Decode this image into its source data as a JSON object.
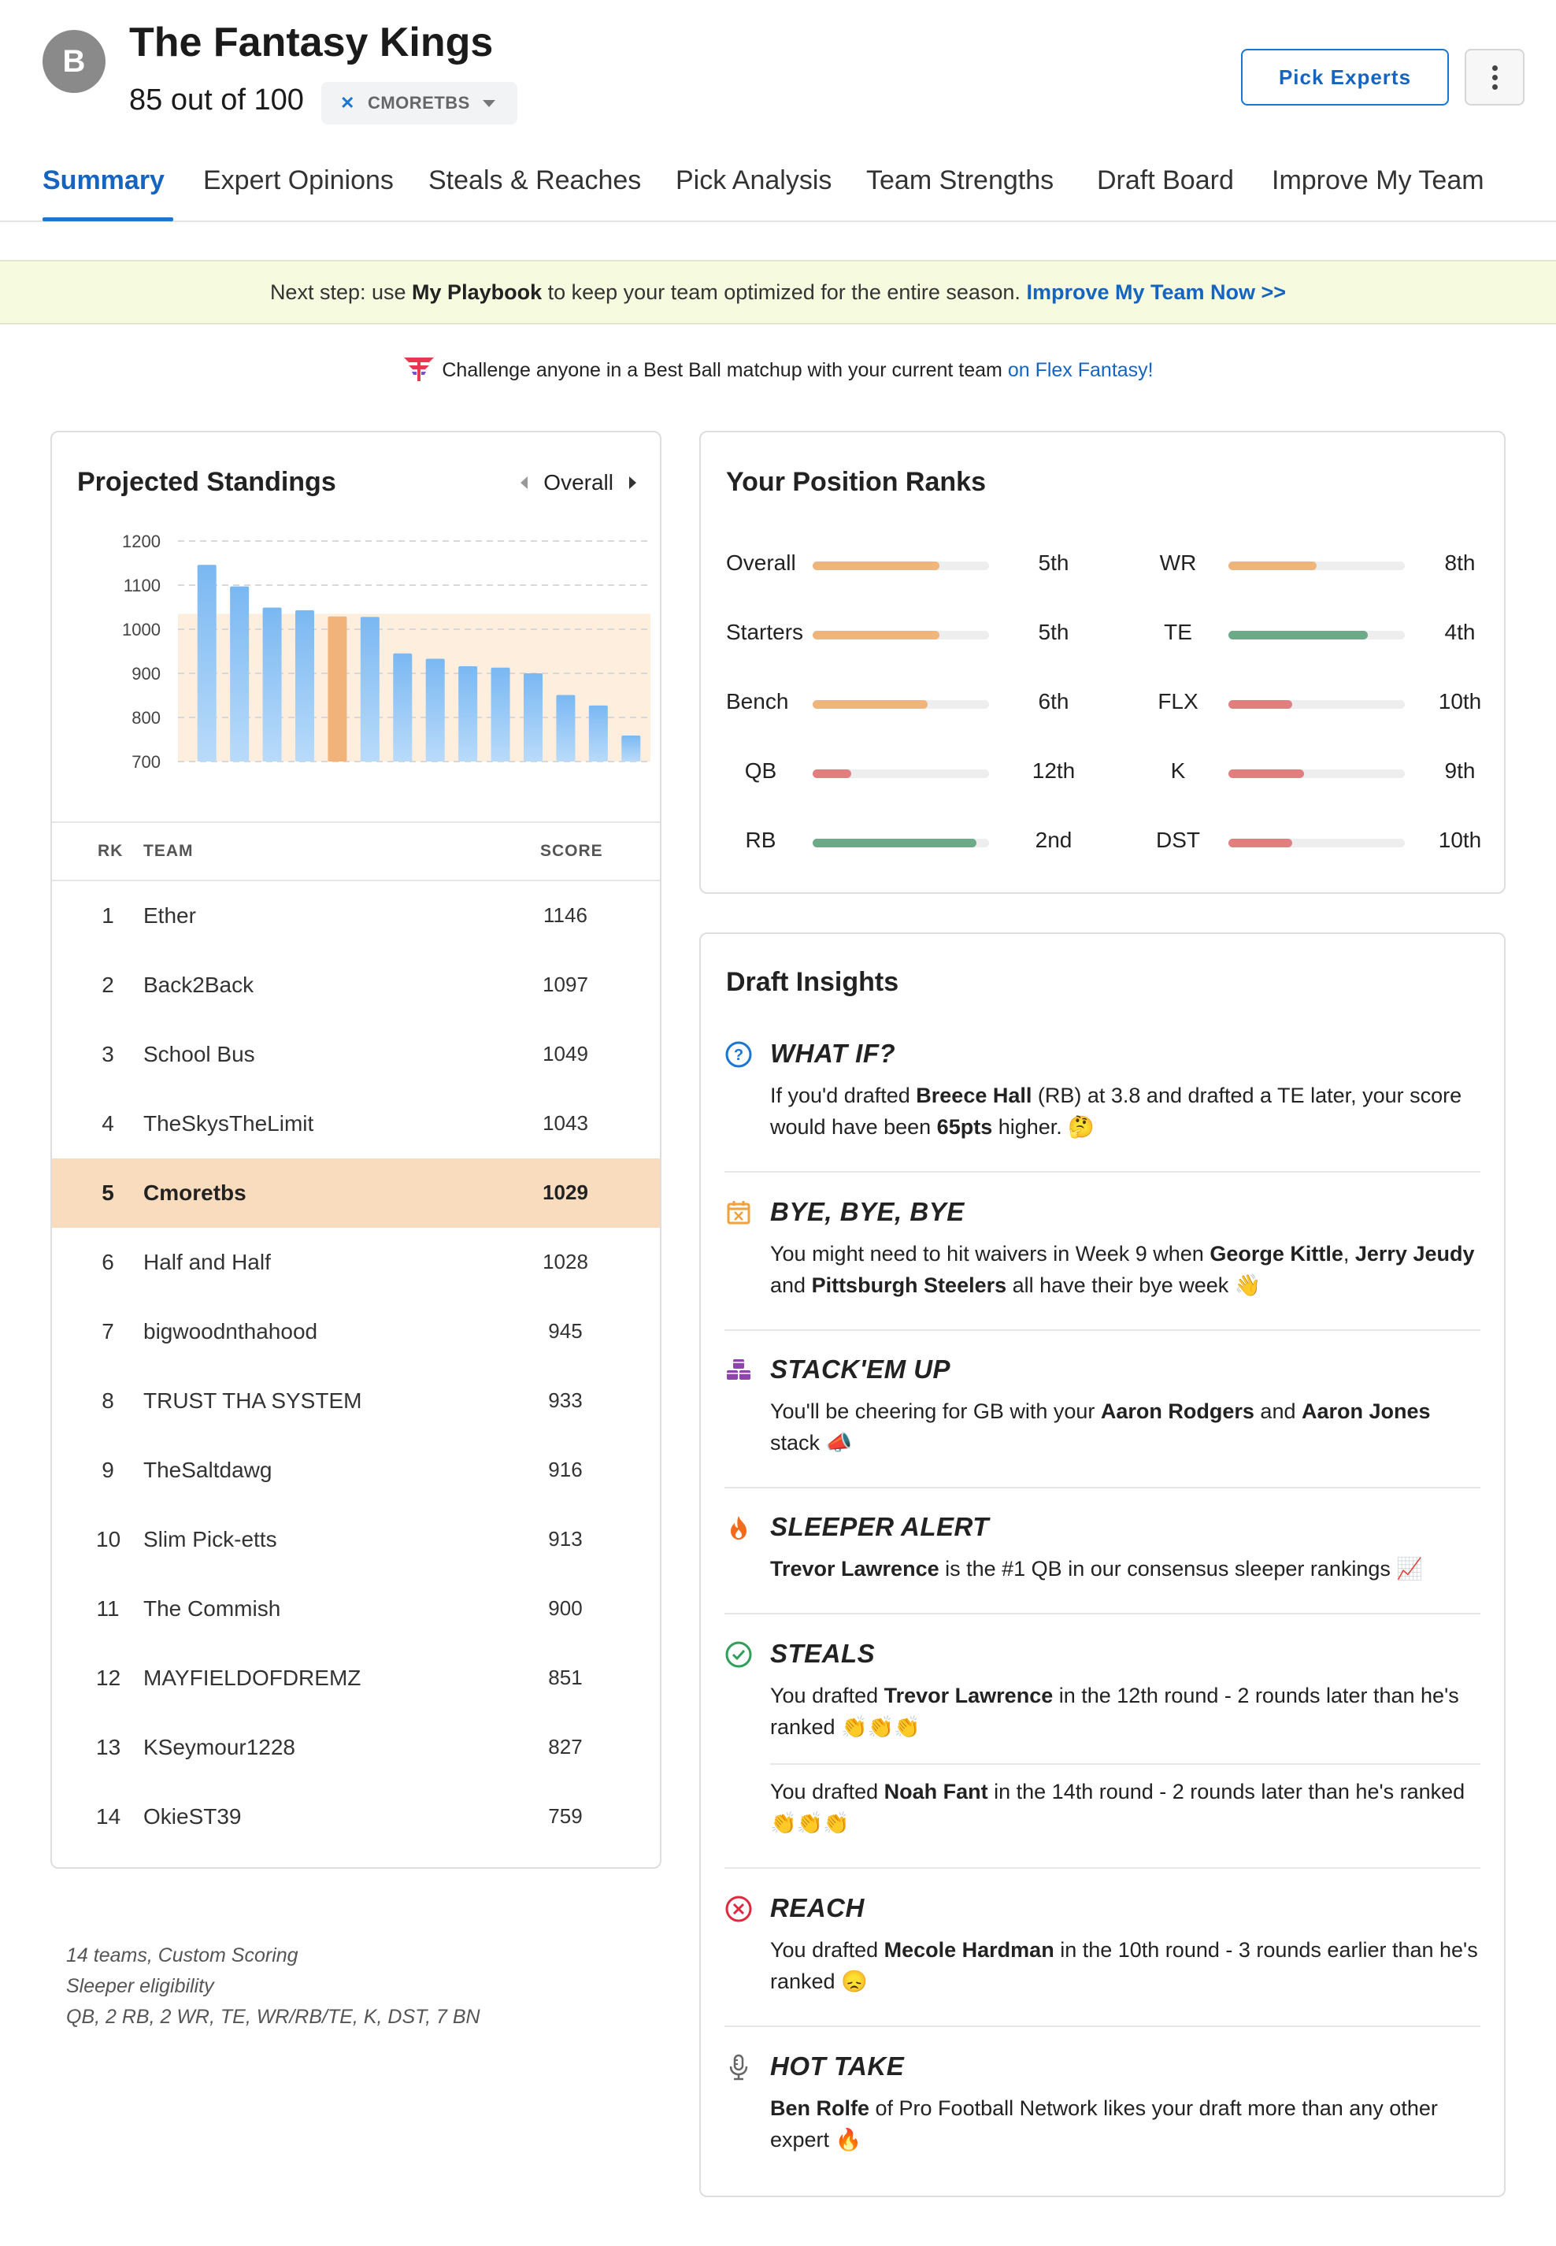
{
  "header": {
    "grade": "B",
    "team_name": "The Fantasy Kings",
    "score": "85",
    "score_suffix": " out of 100",
    "team_chip": "CMORETBS",
    "pick_experts": "Pick Experts"
  },
  "tabs": [
    "Summary",
    "Expert Opinions",
    "Steals & Reaches",
    "Pick Analysis",
    "Team Strengths",
    "Draft Board",
    "Improve My Team"
  ],
  "banner": {
    "prefix": "Next step: use ",
    "bold": "My Playbook",
    "middle": " to keep your team optimized for the entire season. ",
    "link": "Improve My Team Now >>"
  },
  "challenge": {
    "text": "Challenge anyone in a Best Ball matchup with your current team ",
    "link": "on Flex Fantasy!"
  },
  "standings": {
    "title": "Projected Standings",
    "nav_label": "Overall",
    "headers": {
      "rk": "RK",
      "team": "TEAM",
      "score": "SCORE"
    },
    "rows": [
      {
        "rk": "1",
        "team": "Ether",
        "score": "1146"
      },
      {
        "rk": "2",
        "team": "Back2Back",
        "score": "1097"
      },
      {
        "rk": "3",
        "team": "School Bus",
        "score": "1049"
      },
      {
        "rk": "4",
        "team": "TheSkysTheLimit",
        "score": "1043"
      },
      {
        "rk": "5",
        "team": "Cmoretbs",
        "score": "1029",
        "highlight": true
      },
      {
        "rk": "6",
        "team": "Half and Half",
        "score": "1028"
      },
      {
        "rk": "7",
        "team": "bigwoodnthahood",
        "score": "945"
      },
      {
        "rk": "8",
        "team": "TRUST THA SYSTEM",
        "score": "933"
      },
      {
        "rk": "9",
        "team": "TheSaltdawg",
        "score": "916"
      },
      {
        "rk": "10",
        "team": "Slim Pick-etts",
        "score": "913"
      },
      {
        "rk": "11",
        "team": "The Commish",
        "score": "900"
      },
      {
        "rk": "12",
        "team": "MAYFIELDOFDREMZ",
        "score": "851"
      },
      {
        "rk": "13",
        "team": "KSeymour1228",
        "score": "827"
      },
      {
        "rk": "14",
        "team": "OkieST39",
        "score": "759"
      }
    ],
    "footnote": [
      "14 teams, Custom Scoring",
      "Sleeper eligibility",
      "QB, 2 RB, 2 WR, TE, WR/RB/TE, K, DST, 7 BN"
    ]
  },
  "chart_data": {
    "type": "bar",
    "categories": [
      "Ether",
      "Back2Back",
      "School Bus",
      "TheSkysTheLimit",
      "Cmoretbs",
      "Half and Half",
      "bigwoodnthahood",
      "TRUST THA SYSTEM",
      "TheSaltdawg",
      "Slim Pick-etts",
      "The Commish",
      "MAYFIELDOFDREMZ",
      "KSeymour1228",
      "OkieST39"
    ],
    "values": [
      1146,
      1097,
      1049,
      1043,
      1029,
      1028,
      945,
      933,
      916,
      913,
      900,
      851,
      827,
      759
    ],
    "highlight_index": 4,
    "highlight_band": [
      700,
      1035
    ],
    "yticks": [
      1200,
      1100,
      1000,
      900,
      800,
      700
    ],
    "ylim": [
      700,
      1200
    ],
    "grid": true,
    "colors": {
      "bar": "#8ec4f5",
      "highlight": "#f1b37a",
      "band": "#fdeedd"
    }
  },
  "position_ranks": {
    "title": "Your Position Ranks",
    "items": [
      {
        "label": "Overall",
        "value": "5th",
        "fill": 0.72,
        "color": "#f0b57b"
      },
      {
        "label": "Starters",
        "value": "5th",
        "fill": 0.72,
        "color": "#f0b57b"
      },
      {
        "label": "Bench",
        "value": "6th",
        "fill": 0.65,
        "color": "#f0b57b"
      },
      {
        "label": "QB",
        "value": "12th",
        "fill": 0.22,
        "color": "#e07f7d"
      },
      {
        "label": "RB",
        "value": "2nd",
        "fill": 0.93,
        "color": "#6bab87"
      },
      {
        "label": "WR",
        "value": "8th",
        "fill": 0.5,
        "color": "#f0b57b"
      },
      {
        "label": "TE",
        "value": "4th",
        "fill": 0.79,
        "color": "#6bab87"
      },
      {
        "label": "FLX",
        "value": "10th",
        "fill": 0.36,
        "color": "#e07f7d"
      },
      {
        "label": "K",
        "value": "9th",
        "fill": 0.43,
        "color": "#e07f7d"
      },
      {
        "label": "DST",
        "value": "10th",
        "fill": 0.36,
        "color": "#e07f7d"
      }
    ]
  },
  "insights": {
    "title": "Draft Insights",
    "what_if": {
      "title": "WHAT IF?",
      "t1": "If you'd drafted ",
      "b1": "Breece Hall",
      "t2": " (RB) at 3.8 and drafted a TE later, your score would have been ",
      "b2": "65pts",
      "t3": " higher. 🤔"
    },
    "bye": {
      "title": "BYE, BYE, BYE",
      "t1": "You might need to hit waivers in Week 9 when ",
      "b1": "George Kittle",
      "t2": ", ",
      "b2": "Jerry Jeudy",
      "t3": " and ",
      "b3": "Pittsburgh Steelers",
      "t4": " all have their bye week 👋"
    },
    "stack": {
      "title": "STACK'EM UP",
      "t1": "You'll be cheering for GB with your ",
      "b1": "Aaron Rodgers",
      "t2": " and ",
      "b2": "Aaron Jones",
      "t3": " stack 📣"
    },
    "sleeper": {
      "title": "SLEEPER ALERT",
      "b1": "Trevor Lawrence",
      "t1": " is the #1 QB in our consensus sleeper rankings 📈"
    },
    "steals": {
      "title": "STEALS",
      "s1": {
        "t1": "You drafted ",
        "b1": "Trevor Lawrence",
        "t2": " in the 12th round - 2 rounds later than he's ranked 👏👏👏"
      },
      "s2": {
        "t1": "You drafted ",
        "b1": "Noah Fant",
        "t2": " in the 14th round - 2 rounds later than he's ranked 👏👏👏"
      }
    },
    "reach": {
      "title": "REACH",
      "t1": "You drafted ",
      "b1": "Mecole Hardman",
      "t2": " in the 10th round - 3 rounds earlier than he's ranked 😞"
    },
    "hot_take": {
      "title": "HOT TAKE",
      "b1": "Ben Rolfe",
      "t1": " of Pro Football Network likes your draft more than any other expert 🔥"
    }
  }
}
